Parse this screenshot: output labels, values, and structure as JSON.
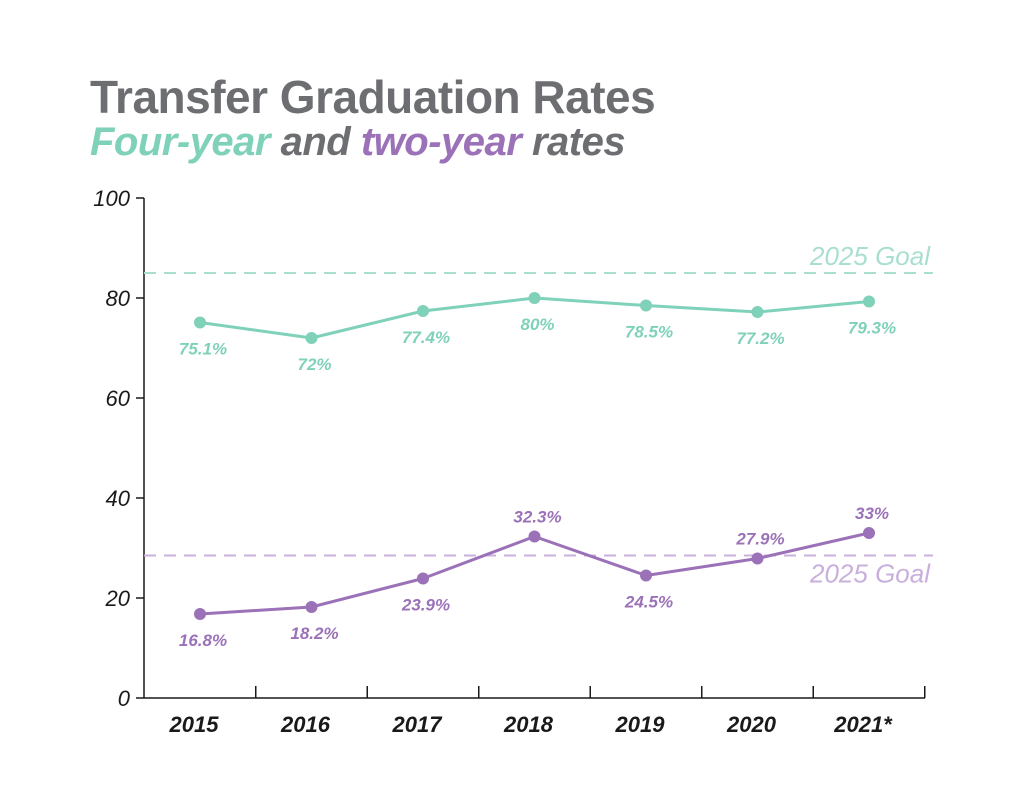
{
  "title": "Transfer Graduation Rates",
  "subtitle": {
    "part1": "Four-year",
    "part2": " and ",
    "part3": "two-year",
    "part4": " rates"
  },
  "colors": {
    "four_year": "#7fd1b9",
    "two_year": "#9b72b8",
    "four_year_goal": "#a9dfd0",
    "two_year_goal": "#c9b0dc",
    "title": "#6d6e71",
    "subtitle_neutral": "#6d6e71",
    "axis": "#1a1a1a"
  },
  "chart_data": {
    "type": "line",
    "categories": [
      "2015",
      "2016",
      "2017",
      "2018",
      "2019",
      "2020",
      "2021*"
    ],
    "ylim": [
      0,
      100
    ],
    "yticks": [
      0,
      20,
      40,
      60,
      80,
      100
    ],
    "series": [
      {
        "key": "four_year",
        "values": [
          75.1,
          72,
          77.4,
          80,
          78.5,
          77.2,
          79.3
        ],
        "labels": [
          "75.1%",
          "72%",
          "77.4%",
          "80%",
          "78.5%",
          "77.2%",
          "79.3%"
        ],
        "label_position": [
          "below",
          "below",
          "below",
          "below",
          "below",
          "below",
          "below"
        ]
      },
      {
        "key": "two_year",
        "values": [
          16.8,
          18.2,
          23.9,
          32.3,
          24.5,
          27.9,
          33
        ],
        "labels": [
          "16.8%",
          "18.2%",
          "23.9%",
          "32.3%",
          "24.5%",
          "27.9%",
          "33%"
        ],
        "label_position": [
          "below",
          "below",
          "below",
          "above",
          "below",
          "above",
          "above"
        ]
      }
    ],
    "goals": [
      {
        "key": "four_year",
        "value": 85,
        "label": "2025 Goal"
      },
      {
        "key": "two_year",
        "value": 28.5,
        "label": "2025 Goal"
      }
    ],
    "grid": false,
    "legend": "none"
  }
}
